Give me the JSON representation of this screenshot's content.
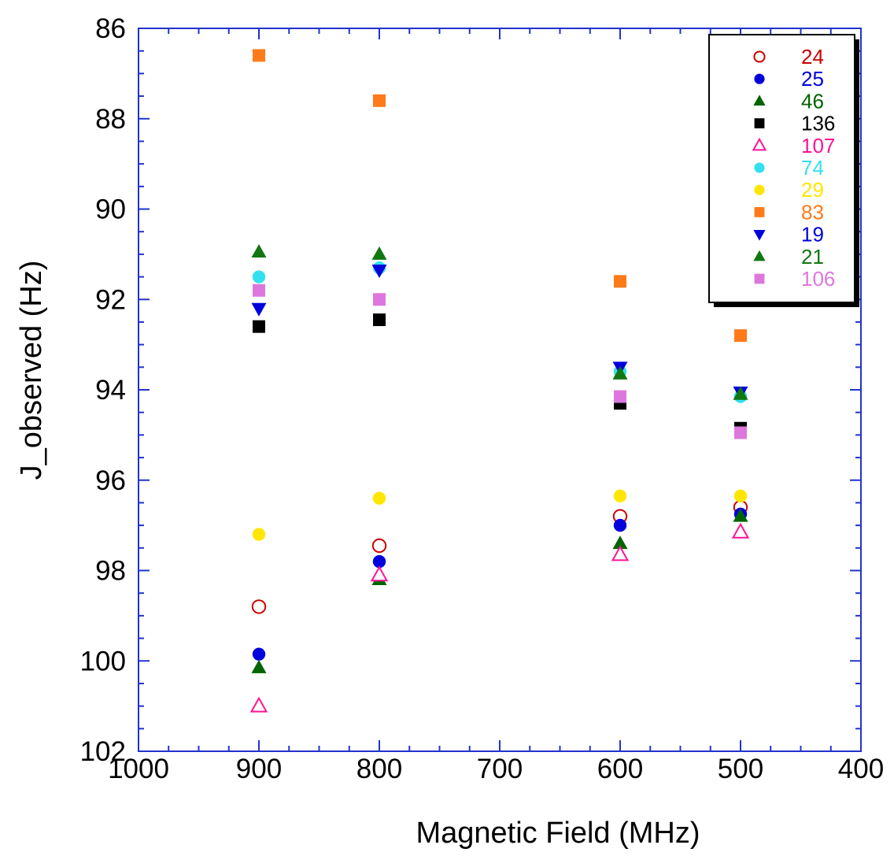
{
  "chart_data": {
    "type": "scatter",
    "title": "",
    "xlabel": "Magnetic Field (MHz)",
    "ylabel": "J_observed (Hz)",
    "xlim": [
      1000,
      400
    ],
    "ylim": [
      86,
      102
    ],
    "x_reversed": true,
    "y_reversed": true,
    "xticks": [
      1000,
      900,
      800,
      700,
      600,
      500,
      400
    ],
    "yticks": [
      86,
      88,
      90,
      92,
      94,
      96,
      98,
      100,
      102
    ],
    "grid": false,
    "legend_position": "top-right",
    "series": [
      {
        "name": "24",
        "color": "#cc0000",
        "marker": "circle-open",
        "x": [
          900,
          800,
          600,
          500
        ],
        "y": [
          98.8,
          97.45,
          96.8,
          96.6
        ]
      },
      {
        "name": "25",
        "color": "#0000dd",
        "marker": "circle",
        "x": [
          900,
          800,
          600,
          500
        ],
        "y": [
          99.85,
          97.8,
          97.0,
          96.75
        ]
      },
      {
        "name": "46",
        "color": "#006400",
        "marker": "triangle-up",
        "x": [
          900,
          800,
          600,
          500
        ],
        "y": [
          100.15,
          98.2,
          97.4,
          96.8
        ]
      },
      {
        "name": "136",
        "color": "#000000",
        "marker": "square",
        "x": [
          900,
          800,
          600,
          500
        ],
        "y": [
          92.6,
          92.45,
          94.3,
          94.85
        ]
      },
      {
        "name": "107",
        "color": "#ff1493",
        "marker": "triangle-up-open",
        "x": [
          900,
          800,
          600,
          500
        ],
        "y": [
          101.0,
          98.1,
          97.65,
          97.15
        ]
      },
      {
        "name": "74",
        "color": "#33e0f0",
        "marker": "circle",
        "x": [
          900,
          800,
          600,
          500
        ],
        "y": [
          91.5,
          91.3,
          93.6,
          94.15
        ]
      },
      {
        "name": "29",
        "color": "#ffe600",
        "marker": "circle",
        "x": [
          900,
          800,
          600,
          500
        ],
        "y": [
          97.2,
          96.4,
          96.35,
          96.35
        ]
      },
      {
        "name": "83",
        "color": "#ff7a1a",
        "marker": "square",
        "x": [
          900,
          800,
          600,
          500
        ],
        "y": [
          86.6,
          87.6,
          91.6,
          92.8
        ]
      },
      {
        "name": "19",
        "color": "#0000dd",
        "marker": "triangle-down",
        "x": [
          900,
          800,
          600,
          500
        ],
        "y": [
          92.2,
          91.35,
          93.5,
          94.05
        ]
      },
      {
        "name": "21",
        "color": "#117711",
        "marker": "triangle-up",
        "x": [
          900,
          800,
          600,
          500
        ],
        "y": [
          90.95,
          91.0,
          93.65,
          94.1
        ]
      },
      {
        "name": "106",
        "color": "#dd77dd",
        "marker": "square",
        "x": [
          900,
          800,
          600,
          500
        ],
        "y": [
          91.8,
          92.0,
          94.15,
          94.95
        ]
      }
    ]
  }
}
